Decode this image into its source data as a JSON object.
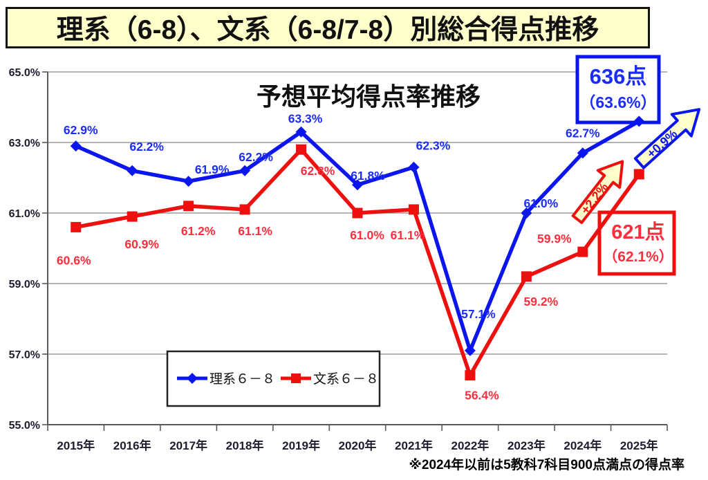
{
  "header": {
    "title": "理系（6-8）、文系（6-8/7-8）別総合得点推移"
  },
  "chart_data": {
    "type": "line",
    "title": "予想平均得点率推移",
    "categories": [
      "2015年",
      "2016年",
      "2017年",
      "2018年",
      "2019年",
      "2020年",
      "2021年",
      "2022年",
      "2023年",
      "2024年",
      "2025年"
    ],
    "y_axis": {
      "ticks": [
        "55.0%",
        "57.0%",
        "59.0%",
        "61.0%",
        "63.0%",
        "65.0%"
      ],
      "min": 55,
      "max": 65,
      "unit": "%"
    },
    "grid": true,
    "legend_position": "inside-bottom-left",
    "series": [
      {
        "name": "理系６－８",
        "color": "#0b16ee",
        "label_color": "#1b2cf5",
        "marker": "diamond",
        "values": [
          62.9,
          62.2,
          61.9,
          62.2,
          63.3,
          61.8,
          62.3,
          57.1,
          61.0,
          62.7,
          63.6
        ],
        "labels": [
          "62.9%",
          "62.2%",
          "61.9%",
          "62.2%",
          "63.3%",
          "61.8%",
          "62.3%",
          "57.1%",
          "61.0%",
          "62.7%",
          null
        ]
      },
      {
        "name": "文系６－８",
        "color": "#ee0f0f",
        "label_color": "#ff2e3e",
        "marker": "square",
        "values": [
          60.6,
          60.9,
          61.2,
          61.1,
          62.8,
          61.0,
          61.1,
          56.4,
          59.2,
          59.9,
          62.1
        ],
        "labels": [
          "60.6%",
          "60.9%",
          "61.2%",
          "61.1%",
          "62.8%",
          "61.0%",
          "61.1%",
          "56.4%",
          "59.2%",
          "59.9%",
          null
        ]
      }
    ]
  },
  "annotations": {
    "blue_box": {
      "line1": "636点",
      "line2": "（63.6%）",
      "color": "#0b16ee"
    },
    "red_box": {
      "line1": "621点",
      "line2": "（62.1%）",
      "color": "#ee0f0f"
    },
    "blue_arrow_label": "+0.9%",
    "red_arrow_label": "+2.2%",
    "arrow_fill": "#ffffcc"
  },
  "footnote": "※2024年以前は5教科7科目900点満点の得点率"
}
